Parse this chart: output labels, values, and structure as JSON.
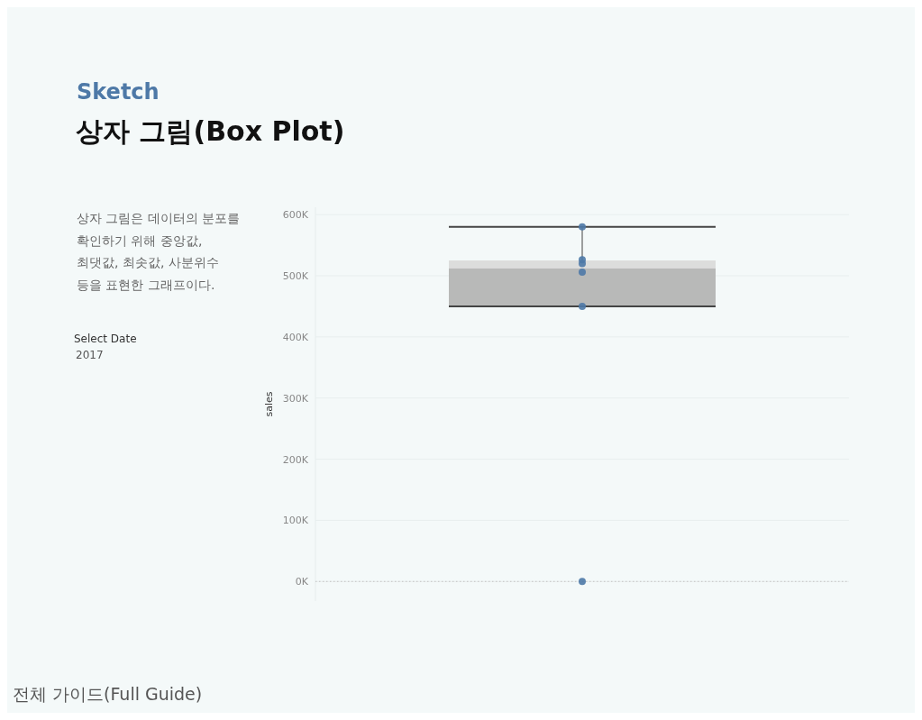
{
  "chart_data": {
    "type": "box",
    "subtitle": "Sketch",
    "title": "상자 그림(Box Plot)",
    "ylabel": "sales",
    "annotations": [
      "상자 그림은 데이터의 분포를\n확인하기 위해 중앙값,\n최댓값, 최솟값, 사분위수\n등을 표현한 그래프이다.",
      "Select Date",
      "2017",
      "전체 가이드(Full Guide)"
    ],
    "categories": [
      null
    ],
    "boxes": [
      {
        "low": 450000,
        "q1": 450000,
        "median": 512000,
        "q3": 525000,
        "high": 580000
      }
    ],
    "series": [
      {
        "type": "scatter",
        "color": "#4e79a7",
        "x": [
          null,
          null,
          null,
          null,
          null,
          null
        ],
        "values": [
          580000,
          526000,
          520000,
          506000,
          450000,
          0
        ]
      }
    ],
    "ylim": [
      -32000,
      612000
    ],
    "yticks": [
      {
        "value": 0,
        "label": "0K"
      },
      {
        "value": 100000,
        "label": "100K"
      },
      {
        "value": 200000,
        "label": "200K"
      },
      {
        "value": 300000,
        "label": "300K"
      },
      {
        "value": 400000,
        "label": "400K"
      },
      {
        "value": 500000,
        "label": "500K"
      },
      {
        "value": 600000,
        "label": "600K"
      }
    ],
    "grid": "y",
    "ref_lines": [
      {
        "axis": "y",
        "value": 0,
        "line_style": "dotted",
        "color": "#c4c4c4"
      }
    ]
  }
}
